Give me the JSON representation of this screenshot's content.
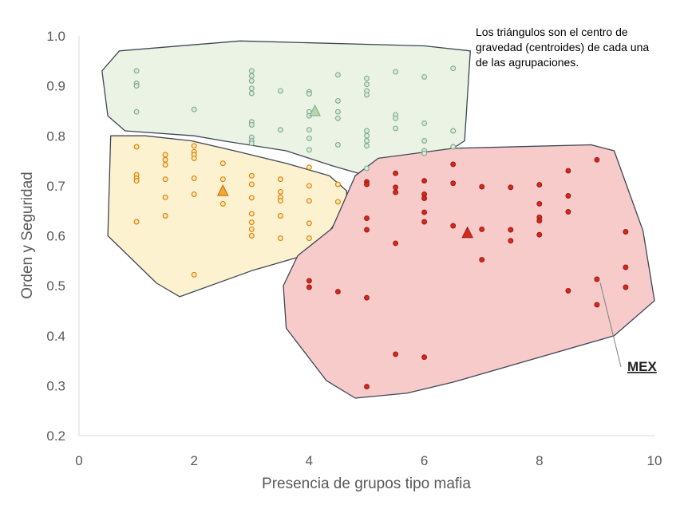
{
  "chart_data": {
    "type": "scatter",
    "xlabel": "Presencia de grupos tipo mafia",
    "ylabel": "Orden y Seguridad",
    "xlim": [
      0,
      10
    ],
    "ylim": [
      0.2,
      1.0
    ],
    "x_ticks": [
      "0",
      "2",
      "4",
      "6",
      "8",
      "10"
    ],
    "y_ticks": [
      "0.2",
      "0.3",
      "0.4",
      "0.5",
      "0.6",
      "0.7",
      "0.8",
      "0.9",
      "1.0"
    ],
    "grid": false,
    "annotation": "Los triángulos son el centro de gravedad (centroides) de cada una de las  agrupaciones.",
    "callout": {
      "label": "MEX",
      "x": 9.0,
      "y": 0.513
    },
    "series": [
      {
        "color": "#7fa88f",
        "fill": "#eaf3e4",
        "centroid": {
          "x": 4.1,
          "y": 0.85
        },
        "hull": [
          [
            0.4,
            0.93
          ],
          [
            0.7,
            0.97
          ],
          [
            2.8,
            0.99
          ],
          [
            6.0,
            0.98
          ],
          [
            6.8,
            0.97
          ],
          [
            6.7,
            0.79
          ],
          [
            6.3,
            0.76
          ],
          [
            5.0,
            0.72
          ],
          [
            4.4,
            0.74
          ],
          [
            3.6,
            0.77
          ],
          [
            2.5,
            0.79
          ],
          [
            2.0,
            0.8
          ],
          [
            0.8,
            0.81
          ],
          [
            0.5,
            0.84
          ]
        ],
        "points": [
          [
            1,
            0.93
          ],
          [
            1,
            0.905
          ],
          [
            1,
            0.9
          ],
          [
            1,
            0.848
          ],
          [
            2,
            0.853
          ],
          [
            3,
            0.93
          ],
          [
            3,
            0.92
          ],
          [
            3,
            0.91
          ],
          [
            3,
            0.895
          ],
          [
            3,
            0.885
          ],
          [
            3,
            0.828
          ],
          [
            3,
            0.822
          ],
          [
            3,
            0.797
          ],
          [
            3,
            0.79
          ],
          [
            3,
            0.785
          ],
          [
            3.5,
            0.89
          ],
          [
            3.5,
            0.812
          ],
          [
            4,
            0.888
          ],
          [
            4,
            0.884
          ],
          [
            4,
            0.848
          ],
          [
            4,
            0.84
          ],
          [
            4,
            0.812
          ],
          [
            4,
            0.795
          ],
          [
            4,
            0.772
          ],
          [
            4.5,
            0.922
          ],
          [
            4.5,
            0.87
          ],
          [
            4.5,
            0.848
          ],
          [
            4.5,
            0.835
          ],
          [
            4.5,
            0.782
          ],
          [
            5,
            0.915
          ],
          [
            5,
            0.903
          ],
          [
            5,
            0.89
          ],
          [
            5,
            0.882
          ],
          [
            5,
            0.81
          ],
          [
            5,
            0.8
          ],
          [
            5,
            0.79
          ],
          [
            5,
            0.78
          ],
          [
            5.5,
            0.928
          ],
          [
            5.5,
            0.842
          ],
          [
            5.5,
            0.835
          ],
          [
            5.5,
            0.815
          ],
          [
            6,
            0.918
          ],
          [
            6,
            0.825
          ],
          [
            6,
            0.79
          ],
          [
            6,
            0.77
          ],
          [
            6,
            0.765
          ],
          [
            6.5,
            0.935
          ],
          [
            6.5,
            0.81
          ],
          [
            6.5,
            0.778
          ],
          [
            5,
            0.735
          ]
        ]
      },
      {
        "color": "#e07b00",
        "fill": "#fdf2cf",
        "centroid": {
          "x": 2.5,
          "y": 0.69
        },
        "hull": [
          [
            0.55,
            0.8
          ],
          [
            1.15,
            0.8
          ],
          [
            1.95,
            0.79
          ],
          [
            2.7,
            0.77
          ],
          [
            3.6,
            0.745
          ],
          [
            4.35,
            0.72
          ],
          [
            4.65,
            0.69
          ],
          [
            4.65,
            0.66
          ],
          [
            4.3,
            0.6
          ],
          [
            3.9,
            0.56
          ],
          [
            3.0,
            0.53
          ],
          [
            1.75,
            0.478
          ],
          [
            1.35,
            0.505
          ],
          [
            0.5,
            0.6
          ]
        ],
        "points": [
          [
            1,
            0.778
          ],
          [
            1,
            0.722
          ],
          [
            1,
            0.715
          ],
          [
            1,
            0.71
          ],
          [
            1,
            0.628
          ],
          [
            1.5,
            0.762
          ],
          [
            1.5,
            0.752
          ],
          [
            1.5,
            0.742
          ],
          [
            1.5,
            0.713
          ],
          [
            1.5,
            0.677
          ],
          [
            1.5,
            0.64
          ],
          [
            2,
            0.78
          ],
          [
            2,
            0.768
          ],
          [
            2,
            0.762
          ],
          [
            2,
            0.755
          ],
          [
            2,
            0.715
          ],
          [
            2,
            0.683
          ],
          [
            2,
            0.522
          ],
          [
            2.5,
            0.745
          ],
          [
            2.5,
            0.713
          ],
          [
            2.5,
            0.664
          ],
          [
            3,
            0.72
          ],
          [
            3,
            0.703
          ],
          [
            3,
            0.676
          ],
          [
            3,
            0.644
          ],
          [
            3,
            0.627
          ],
          [
            3,
            0.613
          ],
          [
            3,
            0.6
          ],
          [
            3.5,
            0.713
          ],
          [
            3.5,
            0.688
          ],
          [
            3.5,
            0.677
          ],
          [
            3.5,
            0.67
          ],
          [
            3.5,
            0.64
          ],
          [
            3.5,
            0.595
          ],
          [
            4,
            0.737
          ],
          [
            4,
            0.7
          ],
          [
            4,
            0.67
          ],
          [
            4,
            0.625
          ],
          [
            4,
            0.595
          ],
          [
            4.5,
            0.703
          ],
          [
            4.5,
            0.668
          ]
        ]
      },
      {
        "color": "#d42b1e",
        "fill": "#f6cbca",
        "centroid": {
          "x": 6.75,
          "y": 0.606
        },
        "hull": [
          [
            4.8,
            0.72
          ],
          [
            5.2,
            0.755
          ],
          [
            6.5,
            0.775
          ],
          [
            8.9,
            0.782
          ],
          [
            9.3,
            0.77
          ],
          [
            9.8,
            0.61
          ],
          [
            10.0,
            0.47
          ],
          [
            9.3,
            0.4
          ],
          [
            6.5,
            0.307
          ],
          [
            5.7,
            0.285
          ],
          [
            4.8,
            0.275
          ],
          [
            4.3,
            0.31
          ],
          [
            3.6,
            0.415
          ],
          [
            3.55,
            0.5
          ],
          [
            3.8,
            0.56
          ],
          [
            4.4,
            0.615
          ]
        ],
        "points": [
          [
            4,
            0.51
          ],
          [
            4,
            0.497
          ],
          [
            4.5,
            0.488
          ],
          [
            5,
            0.708
          ],
          [
            5,
            0.703
          ],
          [
            5,
            0.635
          ],
          [
            5,
            0.612
          ],
          [
            5,
            0.476
          ],
          [
            5,
            0.298
          ],
          [
            5.5,
            0.725
          ],
          [
            5.5,
            0.697
          ],
          [
            5.5,
            0.687
          ],
          [
            5.5,
            0.585
          ],
          [
            5.5,
            0.363
          ],
          [
            6,
            0.71
          ],
          [
            6,
            0.683
          ],
          [
            6,
            0.675
          ],
          [
            6,
            0.647
          ],
          [
            6,
            0.628
          ],
          [
            6,
            0.357
          ],
          [
            6.5,
            0.743
          ],
          [
            6.5,
            0.705
          ],
          [
            6.5,
            0.62
          ],
          [
            7,
            0.698
          ],
          [
            7,
            0.613
          ],
          [
            7,
            0.552
          ],
          [
            7.5,
            0.697
          ],
          [
            7.5,
            0.612
          ],
          [
            7.5,
            0.59
          ],
          [
            8,
            0.702
          ],
          [
            8,
            0.664
          ],
          [
            8,
            0.637
          ],
          [
            8,
            0.63
          ],
          [
            8,
            0.602
          ],
          [
            8.5,
            0.73
          ],
          [
            8.5,
            0.68
          ],
          [
            8.5,
            0.648
          ],
          [
            8.5,
            0.49
          ],
          [
            9,
            0.752
          ],
          [
            9,
            0.513
          ],
          [
            9,
            0.462
          ],
          [
            9.5,
            0.608
          ],
          [
            9.5,
            0.537
          ],
          [
            9.5,
            0.497
          ]
        ]
      }
    ]
  }
}
